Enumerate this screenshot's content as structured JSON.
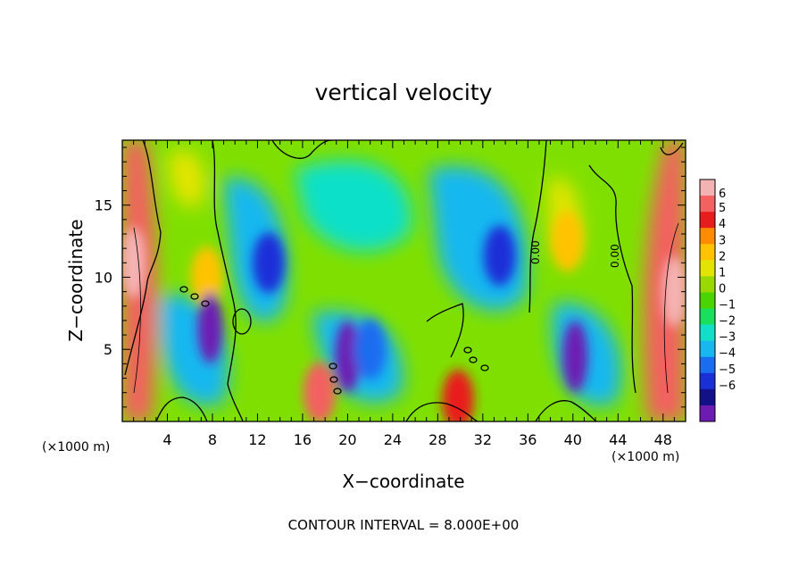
{
  "chart_data": {
    "type": "heatmap",
    "title": "vertical velocity",
    "xlabel": "X−coordinate",
    "ylabel": "Z−coordinate",
    "x_unit_left": "(×1000 m)",
    "x_unit_right": "(×1000 m)",
    "footer": "CONTOUR INTERVAL = 8.000E+00",
    "contour_label": "0.00",
    "xlim": [
      0,
      50
    ],
    "ylim": [
      0,
      19.5
    ],
    "x_ticks": [
      4,
      8,
      12,
      16,
      20,
      24,
      28,
      32,
      36,
      40,
      44,
      48
    ],
    "y_ticks": [
      5,
      10,
      15
    ],
    "colorbar": {
      "levels": [
        6,
        5,
        4,
        3,
        2,
        1,
        0,
        -1,
        -2,
        -3,
        -4,
        -5,
        -6
      ],
      "range": [
        -6,
        6
      ],
      "colors": [
        "#f4b3b3",
        "#f36161",
        "#e81c1c",
        "#ff8c00",
        "#ffc300",
        "#e3e500",
        "#9ad900",
        "#4bd400",
        "#18e05c",
        "#10e0c8",
        "#17b8f0",
        "#1a6cf0",
        "#1a2fd8",
        "#12118a",
        "#6d1bb3"
      ]
    },
    "features": [
      {
        "type": "updraft-core",
        "x": 1.0,
        "z": 11.0,
        "value": 6.5
      },
      {
        "type": "updraft-core",
        "x": 49.0,
        "z": 9.0,
        "value": 6.5
      },
      {
        "type": "updraft-core",
        "x": 17.5,
        "z": 2.0,
        "value": 5.5
      },
      {
        "type": "updraft-core",
        "x": 29.8,
        "z": 1.5,
        "value": 5.0
      },
      {
        "type": "updraft-core",
        "x": 7.5,
        "z": 10.0,
        "value": 2.5
      },
      {
        "type": "updraft-core",
        "x": 39.5,
        "z": 12.5,
        "value": 2.5
      },
      {
        "type": "downdraft-core",
        "x": 7.8,
        "z": 6.5,
        "value": -6.5
      },
      {
        "type": "downdraft-core",
        "x": 20.0,
        "z": 4.5,
        "value": -7.0
      },
      {
        "type": "downdraft-core",
        "x": 40.2,
        "z": 4.5,
        "value": -6.5
      },
      {
        "type": "downdraft-core",
        "x": 13.0,
        "z": 11.0,
        "value": -5.0
      },
      {
        "type": "downdraft-core",
        "x": 33.5,
        "z": 11.5,
        "value": -5.0
      },
      {
        "type": "downdraft-core",
        "x": 22.0,
        "z": 5.0,
        "value": -4.0
      }
    ]
  }
}
